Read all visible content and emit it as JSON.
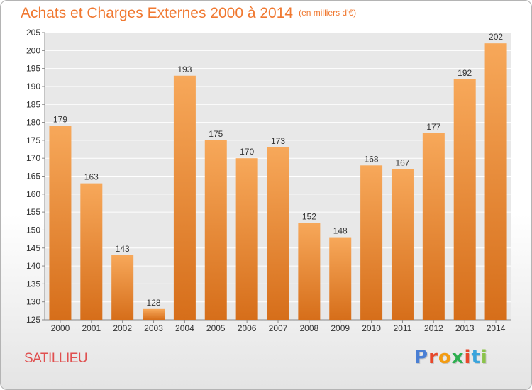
{
  "header": {
    "title": "Achats et Charges Externes 2000 à 2014",
    "unit": "(en milliers d'€)"
  },
  "footer": {
    "commune": "SATILLIEU",
    "logo_text": "Proxiti"
  },
  "colors": {
    "title": "#f07830",
    "commune": "#e05050",
    "bar_light": "#f7a85a",
    "bar_dark": "#d66e1a",
    "plot_bg": "#e8e8e8",
    "logo": [
      "#4a7fd4",
      "#e8472a",
      "#f39c12",
      "#2eaf50",
      "#e8472a",
      "#3aa4dc",
      "#8bc34a"
    ]
  },
  "chart_data": {
    "type": "bar",
    "categories": [
      "2000",
      "2001",
      "2002",
      "2003",
      "2004",
      "2005",
      "2006",
      "2007",
      "2008",
      "2009",
      "2010",
      "2011",
      "2012",
      "2013",
      "2014"
    ],
    "values": [
      179,
      163,
      143,
      128,
      193,
      175,
      170,
      173,
      152,
      148,
      168,
      167,
      177,
      192,
      202
    ],
    "ylim": [
      125,
      205
    ],
    "yticks": [
      125,
      130,
      135,
      140,
      145,
      150,
      155,
      160,
      165,
      170,
      175,
      180,
      185,
      190,
      195,
      200,
      205
    ],
    "grid": true,
    "data_labels": true
  }
}
